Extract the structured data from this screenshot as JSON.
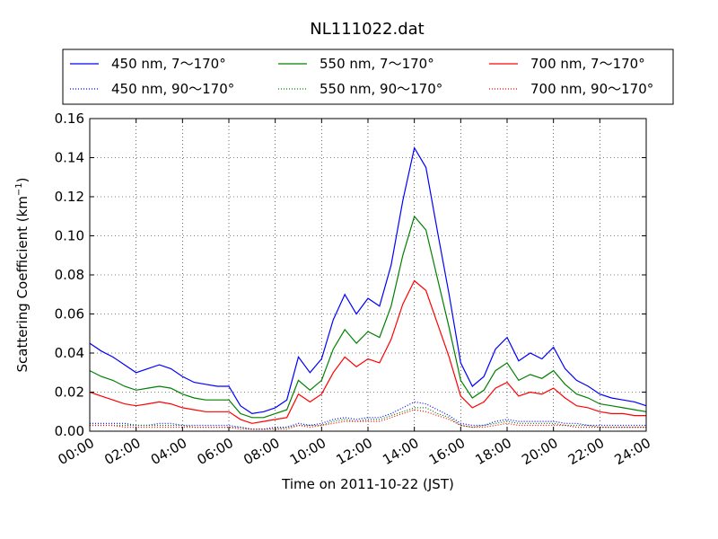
{
  "chart_data": {
    "type": "line",
    "title": "NL111022.dat",
    "xlabel": "Time on 2011-10-22 (JST)",
    "ylabel_main": "Scattering Coefficient (km",
    "ylabel_sup": "−1",
    "ylabel_close": ")",
    "xlim": [
      0,
      24
    ],
    "ylim": [
      0,
      0.16
    ],
    "grid": true,
    "legend_position": "top",
    "x_ticks": [
      0,
      2,
      4,
      6,
      8,
      10,
      12,
      14,
      16,
      18,
      20,
      22,
      24
    ],
    "x_tick_labels": [
      "00:00",
      "02:00",
      "04:00",
      "06:00",
      "08:00",
      "10:00",
      "12:00",
      "14:00",
      "16:00",
      "18:00",
      "20:00",
      "22:00",
      "24:00"
    ],
    "y_ticks": [
      0,
      0.02,
      0.04,
      0.06,
      0.08,
      0.1,
      0.12,
      0.14,
      0.16
    ],
    "y_tick_labels": [
      "0.00",
      "0.02",
      "0.04",
      "0.06",
      "0.08",
      "0.10",
      "0.12",
      "0.14",
      "0.16"
    ],
    "x": [
      0,
      0.5,
      1,
      1.5,
      2,
      2.5,
      3,
      3.5,
      4,
      4.5,
      5,
      5.5,
      6,
      6.5,
      7,
      7.5,
      8,
      8.5,
      9,
      9.5,
      10,
      10.5,
      11,
      11.5,
      12,
      12.5,
      13,
      13.5,
      14,
      14.5,
      15,
      15.5,
      16,
      16.5,
      17,
      17.5,
      18,
      18.5,
      19,
      19.5,
      20,
      20.5,
      21,
      21.5,
      22,
      22.5,
      23,
      23.5,
      24
    ],
    "series": [
      {
        "name": "450 nm, 7～170°",
        "color": "#0000ff",
        "style": "solid",
        "values": [
          0.045,
          0.041,
          0.038,
          0.034,
          0.03,
          0.032,
          0.034,
          0.032,
          0.028,
          0.025,
          0.024,
          0.023,
          0.023,
          0.013,
          0.009,
          0.01,
          0.012,
          0.016,
          0.038,
          0.03,
          0.037,
          0.057,
          0.07,
          0.06,
          0.068,
          0.064,
          0.085,
          0.118,
          0.145,
          0.135,
          0.102,
          0.07,
          0.035,
          0.023,
          0.028,
          0.042,
          0.048,
          0.036,
          0.04,
          0.037,
          0.043,
          0.032,
          0.026,
          0.023,
          0.019,
          0.017,
          0.016,
          0.015,
          0.013
        ]
      },
      {
        "name": "550 nm, 7～170°",
        "color": "#008000",
        "style": "solid",
        "values": [
          0.031,
          0.028,
          0.026,
          0.023,
          0.021,
          0.022,
          0.023,
          0.022,
          0.019,
          0.017,
          0.016,
          0.016,
          0.016,
          0.009,
          0.007,
          0.007,
          0.009,
          0.011,
          0.026,
          0.021,
          0.026,
          0.042,
          0.052,
          0.045,
          0.051,
          0.048,
          0.064,
          0.09,
          0.11,
          0.103,
          0.078,
          0.053,
          0.026,
          0.017,
          0.021,
          0.031,
          0.035,
          0.026,
          0.029,
          0.027,
          0.031,
          0.024,
          0.019,
          0.017,
          0.014,
          0.013,
          0.012,
          0.011,
          0.01
        ]
      },
      {
        "name": "700 nm, 7～170°",
        "color": "#ff0000",
        "style": "solid",
        "values": [
          0.02,
          0.018,
          0.016,
          0.014,
          0.013,
          0.014,
          0.015,
          0.014,
          0.012,
          0.011,
          0.01,
          0.01,
          0.01,
          0.006,
          0.004,
          0.005,
          0.006,
          0.007,
          0.019,
          0.015,
          0.019,
          0.03,
          0.038,
          0.033,
          0.037,
          0.035,
          0.047,
          0.065,
          0.077,
          0.072,
          0.055,
          0.038,
          0.018,
          0.012,
          0.015,
          0.022,
          0.025,
          0.018,
          0.02,
          0.019,
          0.022,
          0.017,
          0.013,
          0.012,
          0.01,
          0.009,
          0.009,
          0.008,
          0.008
        ]
      },
      {
        "name": "450 nm, 90～170°",
        "color": "#0000ff",
        "style": "dotted",
        "values": [
          0.004,
          0.004,
          0.004,
          0.004,
          0.003,
          0.003,
          0.004,
          0.004,
          0.003,
          0.003,
          0.003,
          0.003,
          0.003,
          0.002,
          0.001,
          0.001,
          0.002,
          0.002,
          0.004,
          0.003,
          0.004,
          0.006,
          0.007,
          0.006,
          0.007,
          0.007,
          0.009,
          0.012,
          0.015,
          0.014,
          0.011,
          0.008,
          0.004,
          0.003,
          0.003,
          0.005,
          0.006,
          0.005,
          0.005,
          0.005,
          0.005,
          0.004,
          0.004,
          0.003,
          0.003,
          0.003,
          0.003,
          0.003,
          0.003
        ]
      },
      {
        "name": "550 nm, 90～170°",
        "color": "#008000",
        "style": "dotted",
        "values": [
          0.003,
          0.003,
          0.003,
          0.003,
          0.003,
          0.003,
          0.003,
          0.003,
          0.003,
          0.002,
          0.002,
          0.002,
          0.002,
          0.002,
          0.001,
          0.001,
          0.001,
          0.002,
          0.003,
          0.003,
          0.003,
          0.005,
          0.006,
          0.005,
          0.006,
          0.006,
          0.008,
          0.01,
          0.012,
          0.012,
          0.009,
          0.007,
          0.003,
          0.002,
          0.003,
          0.004,
          0.005,
          0.004,
          0.004,
          0.004,
          0.004,
          0.003,
          0.003,
          0.003,
          0.002,
          0.002,
          0.002,
          0.002,
          0.002
        ]
      },
      {
        "name": "700 nm, 90～170°",
        "color": "#ff0000",
        "style": "dotted",
        "values": [
          0.003,
          0.003,
          0.003,
          0.002,
          0.002,
          0.002,
          0.002,
          0.002,
          0.002,
          0.002,
          0.002,
          0.002,
          0.002,
          0.001,
          0.001,
          0.001,
          0.001,
          0.001,
          0.003,
          0.002,
          0.003,
          0.004,
          0.005,
          0.005,
          0.005,
          0.005,
          0.007,
          0.009,
          0.011,
          0.01,
          0.008,
          0.006,
          0.003,
          0.002,
          0.002,
          0.003,
          0.004,
          0.003,
          0.003,
          0.003,
          0.003,
          0.003,
          0.002,
          0.002,
          0.002,
          0.002,
          0.002,
          0.002,
          0.002
        ]
      }
    ]
  }
}
